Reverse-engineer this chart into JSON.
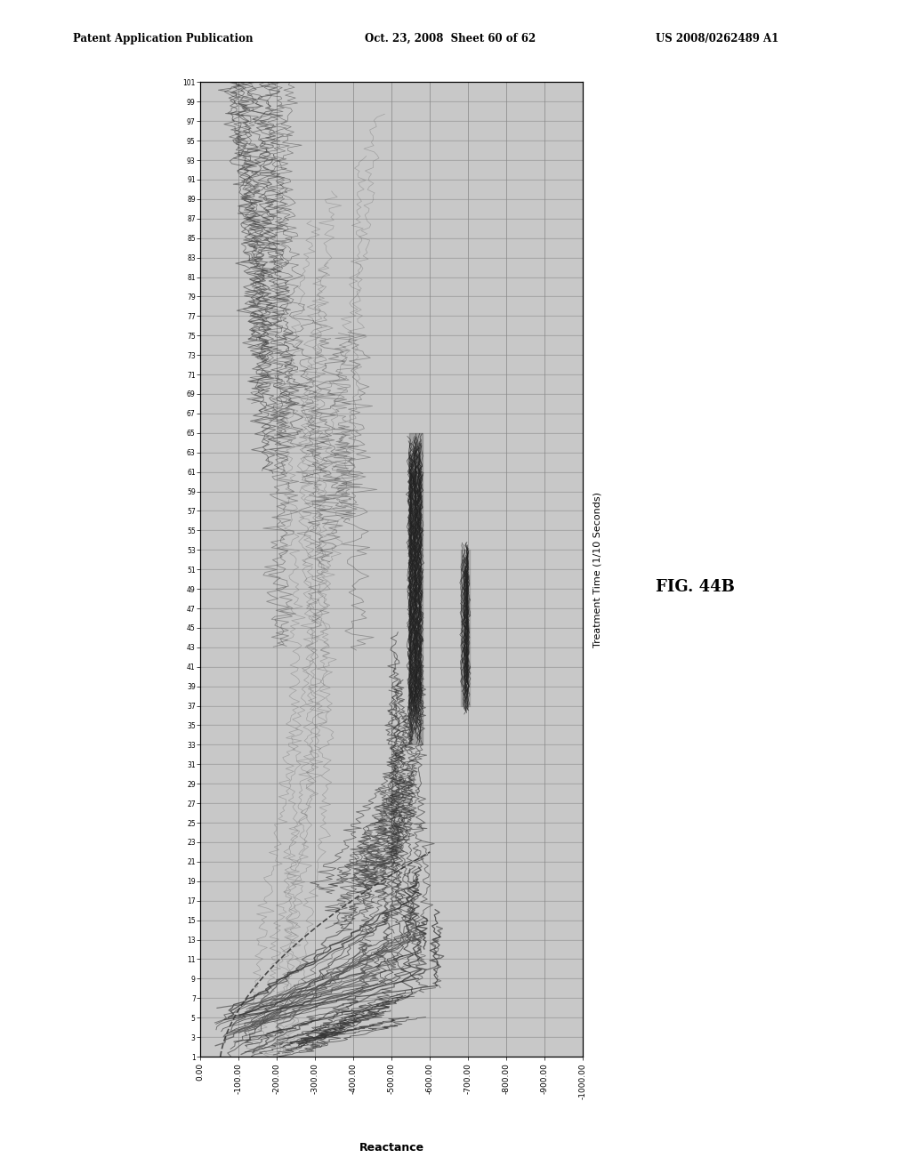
{
  "header_left": "Patent Application Publication",
  "header_mid": "Oct. 23, 2008  Sheet 60 of 62",
  "header_right": "US 2008/0262489 A1",
  "fig_label": "FIG. 44B",
  "y_axis_label": "Treatment Time (1/10 Seconds)",
  "x_axis_label": "Reactance",
  "x_ticks": [
    0.0,
    -100.0,
    -200.0,
    -300.0,
    -400.0,
    -500.0,
    -600.0,
    -700.0,
    -800.0,
    -900.0,
    -1000.0
  ],
  "y_tick_values": [
    1,
    3,
    5,
    7,
    9,
    11,
    13,
    15,
    17,
    19,
    21,
    23,
    25,
    27,
    29,
    31,
    33,
    35,
    37,
    39,
    41,
    43,
    45,
    47,
    49,
    51,
    53,
    55,
    57,
    59,
    61,
    63,
    65,
    67,
    69,
    71,
    73,
    75,
    77,
    79,
    81,
    83,
    85,
    87,
    89,
    91,
    93,
    95,
    97,
    99,
    101
  ],
  "xlim_left": 0,
  "xlim_right": -1000,
  "ylim_bottom": 1,
  "ylim_top": 101,
  "bg_color": "#cccccc",
  "plot_bg": "#c8c8c8",
  "white": "#ffffff",
  "dark": "#111111",
  "mid_gray": "#888888"
}
